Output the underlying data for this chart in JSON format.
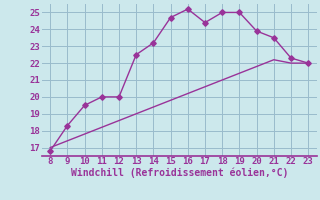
{
  "xlabel": "Windchill (Refroidissement éolien,°C)",
  "x_data": [
    8,
    9,
    10,
    11,
    12,
    13,
    14,
    15,
    16,
    17,
    18,
    19,
    20,
    21,
    22,
    23
  ],
  "y_curve": [
    16.8,
    18.3,
    19.5,
    20.0,
    20.0,
    22.5,
    23.2,
    24.7,
    25.2,
    24.4,
    25.0,
    25.0,
    23.9,
    23.5,
    22.3,
    22.0
  ],
  "y_line": [
    17.0,
    17.4,
    17.8,
    18.2,
    18.6,
    19.0,
    19.4,
    19.8,
    20.2,
    20.6,
    21.0,
    21.4,
    21.8,
    22.2,
    22.0,
    22.0
  ],
  "line_color": "#993399",
  "bg_color": "#cce8ec",
  "grid_color": "#99bbcc",
  "spine_color": "#993399",
  "xlim": [
    7.5,
    23.5
  ],
  "ylim": [
    16.5,
    25.5
  ],
  "xticks": [
    8,
    9,
    10,
    11,
    12,
    13,
    14,
    15,
    16,
    17,
    18,
    19,
    20,
    21,
    22,
    23
  ],
  "yticks": [
    17,
    18,
    19,
    20,
    21,
    22,
    23,
    24,
    25
  ],
  "marker": "D",
  "markersize": 2.8,
  "linewidth": 1.0,
  "tick_fontsize": 6.5,
  "xlabel_fontsize": 7.0
}
